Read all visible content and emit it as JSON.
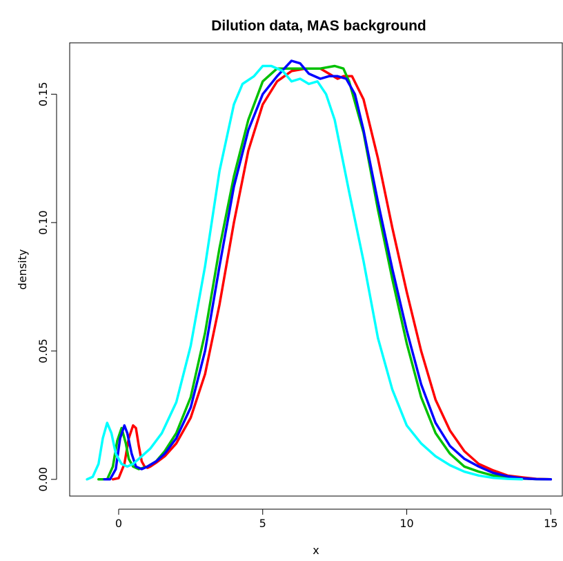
{
  "chart_data": {
    "type": "line",
    "title": "Dilution data, MAS background",
    "xlabel": "x",
    "ylabel": "density",
    "xlim": [
      -1.7,
      15.4
    ],
    "ylim": [
      -0.0065,
      0.17
    ],
    "x_ticks": [
      "0",
      "5",
      "10",
      "15"
    ],
    "x_tick_values": [
      0,
      5,
      10,
      15
    ],
    "y_ticks": [
      "0.00",
      "0.05",
      "0.10",
      "0.15"
    ],
    "y_tick_values": [
      0,
      0.05,
      0.1,
      0.15
    ],
    "grid": false,
    "legend": "none",
    "series": [
      {
        "color": "#ff0000",
        "x": [
          -0.2,
          0,
          0.2,
          0.35,
          0.5,
          0.6,
          0.7,
          0.8,
          0.9,
          1.0,
          1.1,
          1.3,
          1.6,
          2.0,
          2.5,
          3.0,
          3.5,
          4.0,
          4.5,
          5.0,
          5.5,
          6.0,
          6.5,
          7.0,
          7.3,
          7.6,
          7.8,
          8.1,
          8.5,
          9.0,
          9.5,
          10.0,
          10.5,
          11.0,
          11.5,
          12.0,
          12.5,
          13.0,
          13.5,
          14.0,
          14.5,
          15.0
        ],
        "y": [
          0,
          0.0005,
          0.006,
          0.016,
          0.021,
          0.02,
          0.013,
          0.007,
          0.005,
          0.0045,
          0.005,
          0.0065,
          0.009,
          0.014,
          0.024,
          0.041,
          0.068,
          0.1,
          0.128,
          0.146,
          0.155,
          0.159,
          0.16,
          0.16,
          0.158,
          0.156,
          0.157,
          0.157,
          0.148,
          0.125,
          0.098,
          0.073,
          0.05,
          0.031,
          0.019,
          0.011,
          0.006,
          0.0035,
          0.0015,
          0.0008,
          0.0002,
          0
        ]
      },
      {
        "color": "#00c000",
        "x": [
          -0.7,
          -0.4,
          -0.2,
          -0.05,
          0.1,
          0.25,
          0.35,
          0.5,
          0.7,
          1.0,
          1.3,
          1.6,
          2.0,
          2.5,
          3.0,
          3.5,
          4.0,
          4.5,
          5.0,
          5.5,
          6.0,
          6.5,
          7.0,
          7.5,
          7.8,
          8.0,
          8.5,
          9.0,
          9.5,
          10.0,
          10.5,
          11.0,
          11.5,
          12.0,
          12.5,
          13.0,
          13.5,
          14.0,
          14.5,
          15.0
        ],
        "y": [
          0,
          0,
          0.005,
          0.015,
          0.02,
          0.014,
          0.008,
          0.005,
          0.004,
          0.005,
          0.007,
          0.011,
          0.018,
          0.032,
          0.057,
          0.09,
          0.118,
          0.14,
          0.155,
          0.16,
          0.16,
          0.16,
          0.16,
          0.161,
          0.16,
          0.155,
          0.135,
          0.105,
          0.078,
          0.053,
          0.032,
          0.018,
          0.01,
          0.005,
          0.003,
          0.0015,
          0.0008,
          0.0003,
          0.0001,
          0
        ]
      },
      {
        "color": "#0000ff",
        "x": [
          -0.5,
          -0.3,
          -0.1,
          0.05,
          0.2,
          0.3,
          0.45,
          0.6,
          0.8,
          1.0,
          1.3,
          1.6,
          2.0,
          2.5,
          3.0,
          3.5,
          4.0,
          4.5,
          5.0,
          5.5,
          6.0,
          6.3,
          6.6,
          7.0,
          7.3,
          7.6,
          7.9,
          8.2,
          8.5,
          9.0,
          9.5,
          10.0,
          10.5,
          11.0,
          11.5,
          12.0,
          12.5,
          13.0,
          13.5,
          14.0,
          14.5,
          15.0
        ],
        "y": [
          0,
          0,
          0.004,
          0.016,
          0.021,
          0.018,
          0.01,
          0.005,
          0.004,
          0.005,
          0.007,
          0.01,
          0.016,
          0.028,
          0.05,
          0.083,
          0.114,
          0.136,
          0.15,
          0.157,
          0.163,
          0.162,
          0.158,
          0.156,
          0.157,
          0.157,
          0.156,
          0.15,
          0.136,
          0.108,
          0.082,
          0.058,
          0.037,
          0.022,
          0.013,
          0.008,
          0.005,
          0.0025,
          0.0012,
          0.0004,
          0.0001,
          0
        ]
      },
      {
        "color": "#00ffff",
        "x": [
          -1.1,
          -0.9,
          -0.7,
          -0.55,
          -0.4,
          -0.25,
          -0.1,
          0.1,
          0.3,
          0.5,
          0.8,
          1.1,
          1.5,
          2.0,
          2.5,
          3.0,
          3.5,
          4.0,
          4.3,
          4.7,
          5.0,
          5.3,
          5.7,
          6.0,
          6.3,
          6.6,
          6.9,
          7.2,
          7.5,
          8.0,
          8.5,
          9.0,
          9.5,
          10.0,
          10.5,
          11.0,
          11.5,
          12.0,
          12.5,
          13.0,
          13.5,
          14.0
        ],
        "y": [
          0,
          0.001,
          0.006,
          0.016,
          0.022,
          0.018,
          0.01,
          0.006,
          0.005,
          0.006,
          0.009,
          0.012,
          0.018,
          0.03,
          0.052,
          0.083,
          0.12,
          0.146,
          0.154,
          0.157,
          0.161,
          0.161,
          0.159,
          0.155,
          0.156,
          0.154,
          0.155,
          0.15,
          0.14,
          0.112,
          0.085,
          0.055,
          0.035,
          0.021,
          0.014,
          0.009,
          0.0055,
          0.003,
          0.0015,
          0.0006,
          0.0002,
          0
        ]
      }
    ]
  }
}
